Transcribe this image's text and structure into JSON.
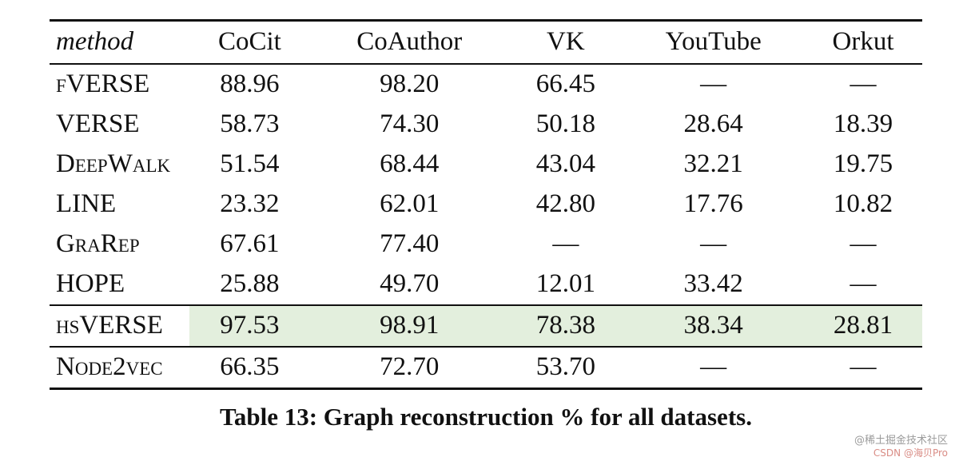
{
  "table": {
    "caption": "Table 13: Graph reconstruction % for all datasets.",
    "columns": [
      "method",
      "CoCit",
      "CoAuthor",
      "VK",
      "YouTube",
      "Orkut"
    ],
    "rows": [
      {
        "method": "fVERSE",
        "values": [
          "88.96",
          "98.20",
          "66.45",
          "—",
          "—"
        ]
      },
      {
        "method": "VERSE",
        "values": [
          "58.73",
          "74.30",
          "50.18",
          "28.64",
          "18.39"
        ]
      },
      {
        "method": "DeepWalk",
        "values": [
          "51.54",
          "68.44",
          "43.04",
          "32.21",
          "19.75"
        ]
      },
      {
        "method": "LINE",
        "values": [
          "23.32",
          "62.01",
          "42.80",
          "17.76",
          "10.82"
        ]
      },
      {
        "method": "GraRep",
        "values": [
          "67.61",
          "77.40",
          "—",
          "—",
          "—"
        ]
      },
      {
        "method": "HOPE",
        "values": [
          "25.88",
          "49.70",
          "12.01",
          "33.42",
          "—"
        ]
      },
      {
        "method": "hsVERSE",
        "values": [
          "97.53",
          "98.91",
          "78.38",
          "38.34",
          "28.81"
        ],
        "highlight": true
      },
      {
        "method": "Node2vec",
        "values": [
          "66.35",
          "72.70",
          "53.70",
          "—",
          "—"
        ]
      }
    ],
    "highlight_color": "#e3efdd"
  },
  "watermark": {
    "line1": "@稀土掘金技术社区",
    "line2": "CSDN @海贝Pro"
  }
}
